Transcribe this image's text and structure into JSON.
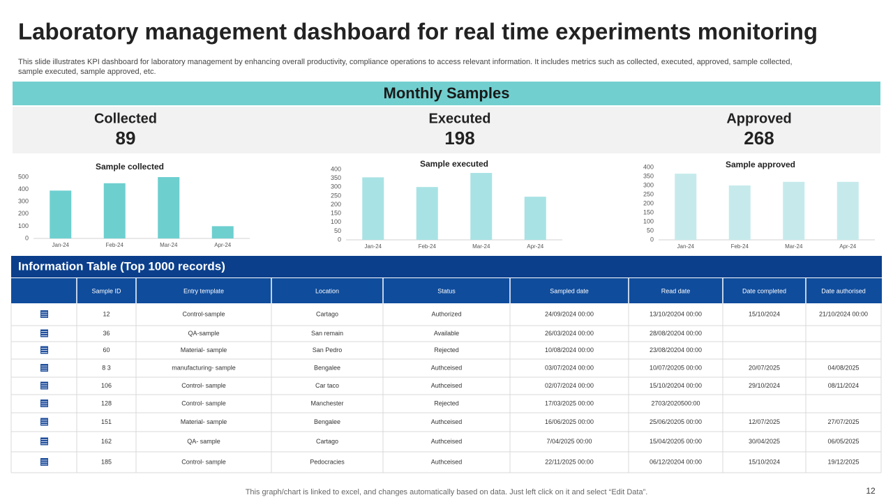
{
  "title": "Laboratory management dashboard for real time experiments monitoring",
  "description": [
    "This slide illustrates KPI dashboard for laboratory management by enhancing overall productivity,  compliance operations to access relevant information. It includes metrics such as collected, executed, approved, sample collected,",
    "sample executed, sample approved, etc."
  ],
  "panel": {
    "title": "Monthly Samples",
    "kpis": [
      {
        "label": "Collected",
        "value": 89
      },
      {
        "label": "Executed",
        "value": 198
      },
      {
        "label": "Approved",
        "value": 268
      }
    ]
  },
  "chart_data": [
    {
      "type": "bar",
      "title": "Sample   collected",
      "categories": [
        "Jan-24",
        "Feb-24",
        "Mar-24",
        "Apr-24"
      ],
      "values": [
        390,
        450,
        500,
        100
      ],
      "color": "#6ecfcf",
      "ylim": [
        0,
        500
      ],
      "yticks": [
        0,
        100,
        200,
        300,
        400,
        500
      ]
    },
    {
      "type": "bar",
      "title": "Sample executed",
      "categories": [
        "Jan-24",
        "Feb-24",
        "Mar-24",
        "Apr-24"
      ],
      "values": [
        355,
        300,
        380,
        245
      ],
      "color": "#a8e2e4",
      "ylim": [
        0,
        400
      ],
      "yticks": [
        0,
        50,
        100,
        150,
        200,
        250,
        300,
        350,
        400
      ]
    },
    {
      "type": "bar",
      "title": "Sample approved",
      "categories": [
        "Jan-24",
        "Feb-24",
        "Mar-24",
        "Apr-24"
      ],
      "values": [
        365,
        300,
        320,
        320
      ],
      "color": "#c6eaec",
      "ylim": [
        0,
        400
      ],
      "yticks": [
        0,
        50,
        100,
        150,
        200,
        250,
        300,
        350,
        400
      ]
    }
  ],
  "table": {
    "title": "Information Table (Top 1000 records)",
    "headers": [
      "Sample ID",
      "Entry template",
      "Location",
      "Status",
      "Sampled date",
      "Read date",
      "Date completed",
      "Date authorised"
    ],
    "rows": [
      [
        "12",
        "Control-sample",
        "Cartago",
        "Authorized",
        "24/09/2024 00:00",
        "13/10/20204 00:00",
        "15/10/2024",
        "21/10/2024 00:00"
      ],
      [
        "36",
        "QA-sample",
        "San remain",
        "Available",
        "26/03/2024 00:00",
        "28/08/20204 00:00",
        null,
        null
      ],
      [
        "60",
        "Material- sample",
        "San Pedro",
        "Rejected",
        "10/08/2024 00:00",
        "23/08/20204 00:00",
        null,
        null
      ],
      [
        "8 3",
        "manufacturing- sample",
        "Bengalee",
        "Authceised",
        "03/07/2024 00:00",
        "10/07/20205 00:00",
        "20/07/2025",
        "04/08/2025"
      ],
      [
        "106",
        "Control- sample",
        "Car taco",
        "Authceised",
        "02/07/2024 00:00",
        "15/10/20204 00:00",
        "29/10/2024",
        "08/11/2024"
      ],
      [
        "128",
        "Control- sample",
        "Manchester",
        "Rejected",
        "17/03/2025 00:00",
        "2703/2020500:00",
        null,
        null
      ],
      [
        "151",
        "Material- sample",
        "Bengalee",
        "Authceised",
        "16/06/2025 00:00",
        "25/06/20205 00:00",
        "12/07/2025",
        "27/07/2025"
      ],
      [
        "162",
        "QA- sample",
        "Cartago",
        "Authceised",
        "7/04/2025 00:00",
        "15/04/20205 00:00",
        "30/04/2025",
        "06/05/2025"
      ],
      [
        "185",
        "Control- sample",
        "Pedocracies",
        "Authceised",
        "22/11/2025 00:00",
        "06/12/20204 00:00",
        "15/10/2024",
        "19/12/2025"
      ]
    ]
  },
  "footer": "This graph/chart is linked to excel,  and changes automatically based on data. Just left click on it and select “Edit Data”.",
  "page_number": 12
}
